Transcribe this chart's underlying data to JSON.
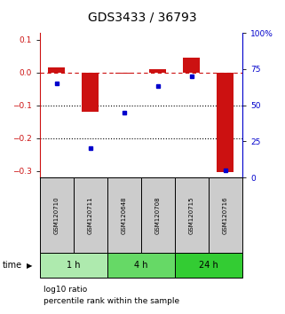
{
  "title": "GDS3433 / 36793",
  "samples": [
    "GSM120710",
    "GSM120711",
    "GSM120648",
    "GSM120708",
    "GSM120715",
    "GSM120716"
  ],
  "log10_ratio": [
    0.015,
    -0.12,
    -0.005,
    0.01,
    0.045,
    -0.305
  ],
  "percentile_rank": [
    65,
    20,
    45,
    63,
    70,
    5
  ],
  "groups": [
    {
      "label": "1 h",
      "indices": [
        0,
        1
      ],
      "color": "#aeeaae"
    },
    {
      "label": "4 h",
      "indices": [
        2,
        3
      ],
      "color": "#66d966"
    },
    {
      "label": "24 h",
      "indices": [
        4,
        5
      ],
      "color": "#33cc33"
    }
  ],
  "left_ylim": [
    -0.32,
    0.12
  ],
  "left_yticks": [
    0.1,
    0.0,
    -0.1,
    -0.2,
    -0.3
  ],
  "right_ylim": [
    0,
    100
  ],
  "right_yticks": [
    0,
    25,
    50,
    75,
    100
  ],
  "right_yticklabels": [
    "0",
    "25",
    "50",
    "75",
    "100%"
  ],
  "bar_color": "#cc1111",
  "dot_color": "#0000cc",
  "ref_line_y": 0.0,
  "dotted_lines": [
    -0.1,
    -0.2
  ],
  "background_color": "#ffffff",
  "plot_bg": "#ffffff",
  "title_fontsize": 10,
  "tick_fontsize": 6.5,
  "legend_red_label": "log10 ratio",
  "legend_blue_label": "percentile rank within the sample",
  "time_label": "time",
  "header_bg": "#cccccc",
  "bar_width": 0.5
}
